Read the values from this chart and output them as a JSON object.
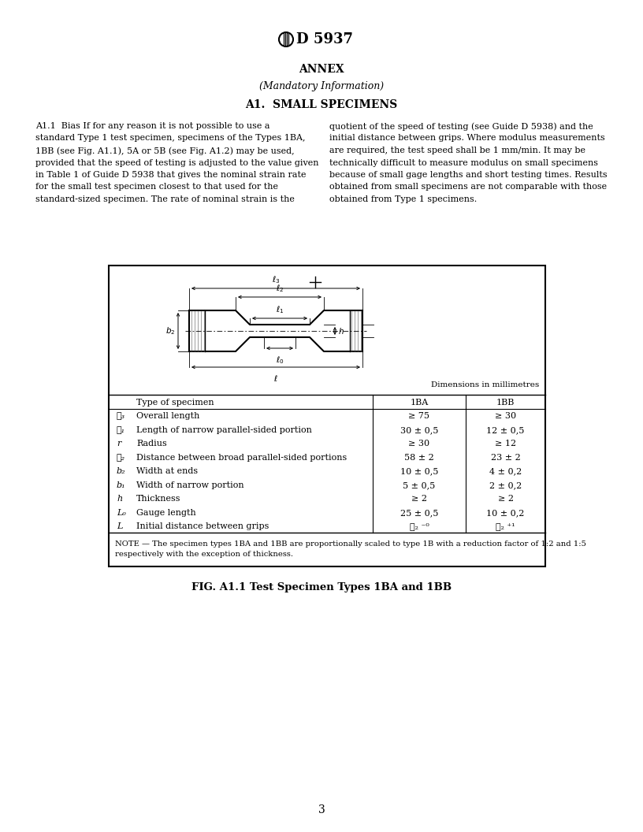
{
  "page_bg": "#ffffff",
  "annex_title": "ANNEX",
  "annex_subtitle": "(Mandatory Information)",
  "section_title": "A1.  SMALL SPECIMENS",
  "paragraph_left": "A1.1  Bias If for any reason it is not possible to use a\nstandard Type 1 test specimen, specimens of the Types 1BA,\n1BB (see Fig. A1.1), 5A or 5B (see Fig. A1.2) may be used,\nprovided that the speed of testing is adjusted to the value given\nin Table 1 of Guide D 5938 that gives the nominal strain rate\nfor the small test specimen closest to that used for the\nstandard-sized specimen. The rate of nominal strain is the",
  "paragraph_right": "quotient of the speed of testing (see Guide D 5938) and the\ninitial distance between grips. Where modulus measurements\nare required, the test speed shall be 1 mm/min. It may be\ntechnically difficult to measure modulus on small specimens\nbecause of small gage lengths and short testing times. Results\nobtained from small specimens are not comparable with those\nobtained from Type 1 specimens.",
  "fig_caption": "FIG. A1.1 Test Specimen Types 1BA and 1BB",
  "dim_in_mm": "Dimensions in millimetres",
  "table_header": [
    "Type of specimen",
    "1BA",
    "1BB"
  ],
  "table_rows": [
    [
      "ℓ₃",
      "Overall length",
      "≥ 75",
      "≥ 30"
    ],
    [
      "ℓ₁",
      "Length of narrow parallel-sided portion",
      "30 ± 0,5",
      "12 ± 0,5"
    ],
    [
      "r",
      "Radius",
      "≥ 30",
      "≥ 12"
    ],
    [
      "ℓ₂",
      "Distance between broad parallel-sided portions",
      "58 ± 2",
      "23 ± 2"
    ],
    [
      "b₂",
      "Width at ends",
      "10 ± 0,5",
      "4 ± 0,2"
    ],
    [
      "b₁",
      "Width of narrow portion",
      "5 ± 0,5",
      "2 ± 0,2"
    ],
    [
      "h",
      "Thickness",
      "≥ 2",
      "≥ 2"
    ],
    [
      "L₀",
      "Gauge length",
      "25 ± 0,5",
      "10 ± 0,2"
    ],
    [
      "L",
      "Initial distance between grips",
      "ℓ₂ ⁻⁰",
      "ℓ₂ ⁺¹"
    ]
  ],
  "note_text": "NOTE — The specimen types 1BA and 1BB are proportionally scaled to type 1B with a reduction factor of 1:2 and 1:5\nrespectively with the exception of thickness.",
  "page_number": "3"
}
